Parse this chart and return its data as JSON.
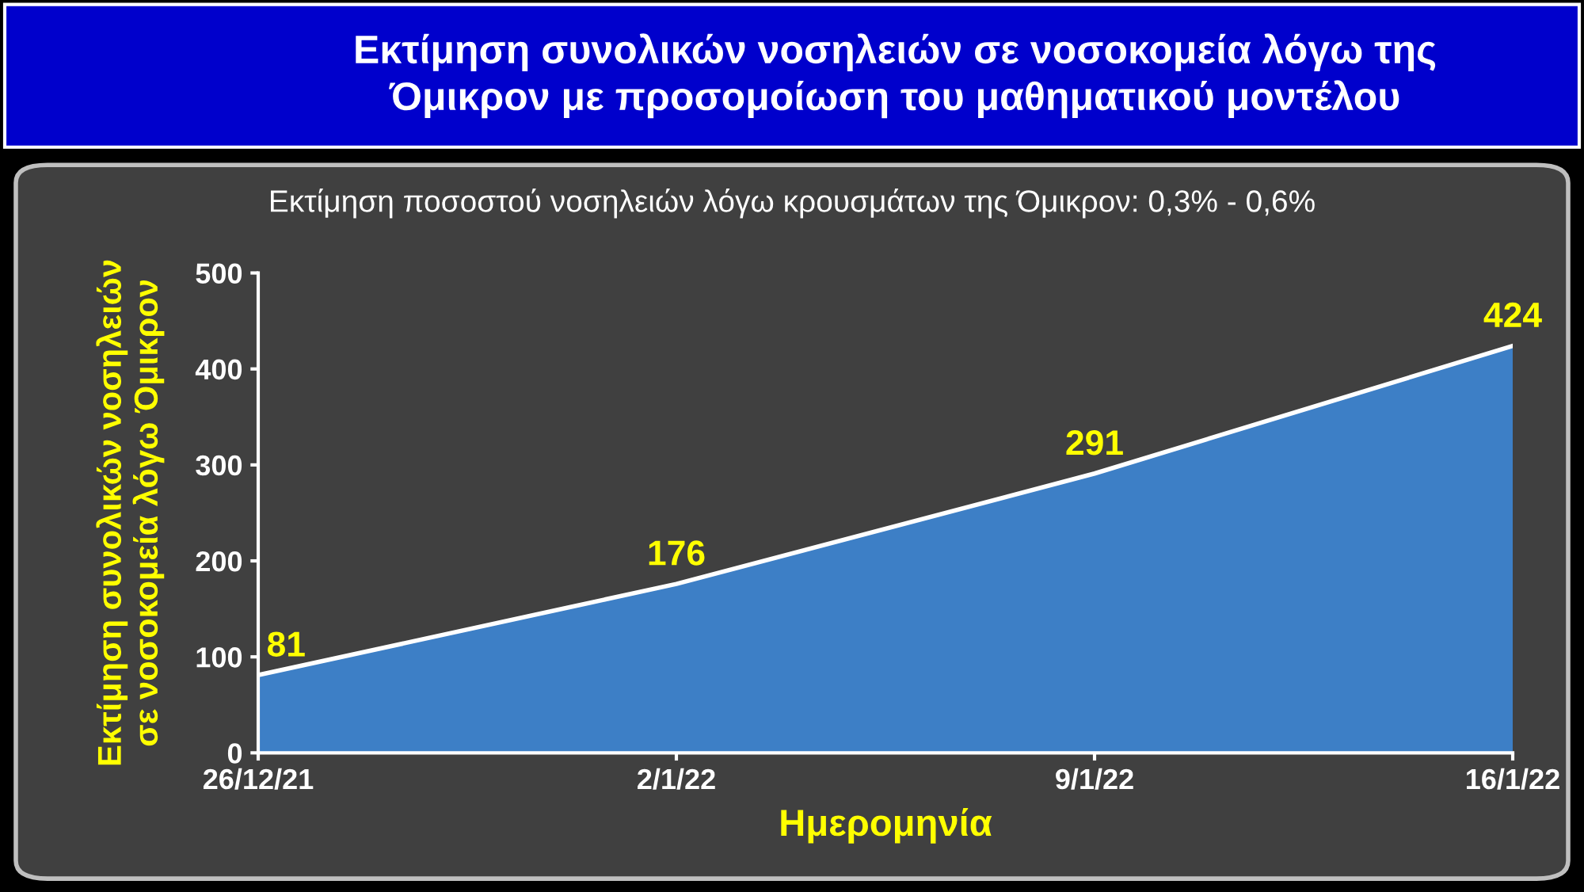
{
  "chart_data": {
    "type": "area",
    "title": "Εκτίμηση συνολικών νοσηλειών σε νοσοκομεία λόγω της\nΌμικρον με προσομοίωση του μαθηματικού μοντέλου",
    "subtitle": "Εκτίμηση ποσοστού νοσηλειών λόγω κρουσμάτων της Όμικρον: 0,3% - 0,6%",
    "xlabel": "Ημερομηνία",
    "ylabel": "Εκτίμηση συνολικών νοσηλειών\nσε νοσοκομεία λόγω Όμικρον",
    "categories": [
      "26/12/21",
      "2/1/22",
      "9/1/22",
      "16/1/22"
    ],
    "series": [
      {
        "color": "#3d7fc6",
        "values": [
          81,
          176,
          291,
          424
        ]
      }
    ],
    "ylim": [
      0,
      500
    ],
    "yticks": [
      0,
      100,
      200,
      300,
      400,
      500
    ],
    "grid": false,
    "legend": false,
    "data_labels": true
  }
}
